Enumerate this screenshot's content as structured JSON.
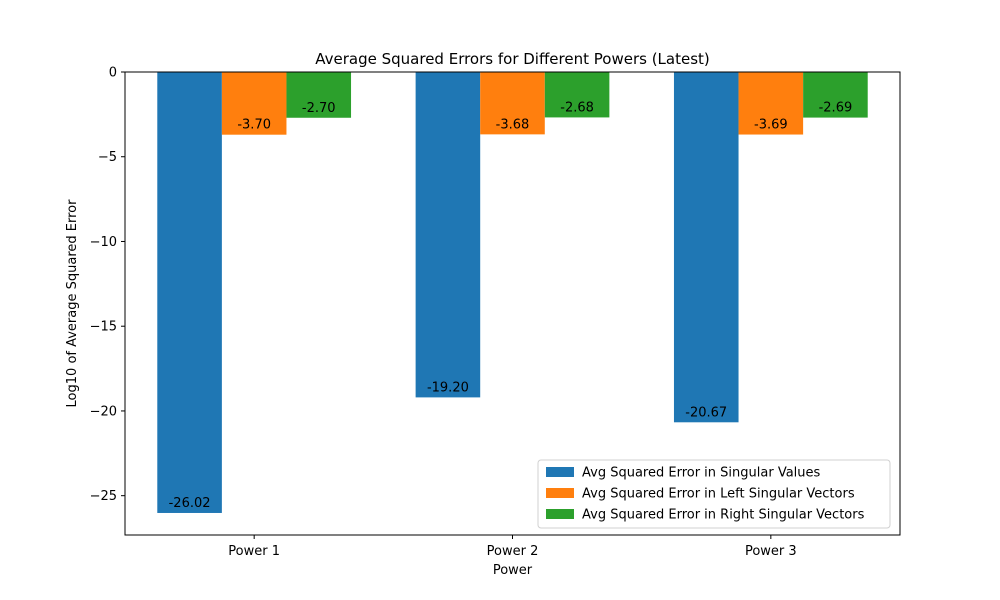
{
  "colors": {
    "series_1": "#1f77b4",
    "series_2": "#ff7f0e",
    "series_3": "#2ca02c"
  },
  "chart_data": {
    "type": "bar",
    "title": "Average Squared Errors for Different Powers (Latest)",
    "xlabel": "Power",
    "ylabel": "Log10 of Average Squared Error",
    "categories": [
      "Power 1",
      "Power 2",
      "Power 3"
    ],
    "ylim": [
      -27.32,
      0
    ],
    "yticks": [
      0,
      -5,
      -10,
      -15,
      -20,
      -25
    ],
    "ytick_labels": [
      "0",
      "−5",
      "−10",
      "−15",
      "−20",
      "−25"
    ],
    "grid": false,
    "legend_position": "bottom-right",
    "series": [
      {
        "name": "Avg Squared Error in Singular Values",
        "values": [
          -26.02,
          -19.2,
          -20.67
        ],
        "labels": [
          "-26.02",
          "-19.20",
          "-20.67"
        ]
      },
      {
        "name": "Avg Squared Error in Left Singular Vectors",
        "values": [
          -3.7,
          -3.68,
          -3.69
        ],
        "labels": [
          "-3.70",
          "-3.68",
          "-3.69"
        ]
      },
      {
        "name": "Avg Squared Error in Right Singular Vectors",
        "values": [
          -2.7,
          -2.68,
          -2.69
        ],
        "labels": [
          "-2.70",
          "-2.68",
          "-2.69"
        ]
      }
    ]
  }
}
